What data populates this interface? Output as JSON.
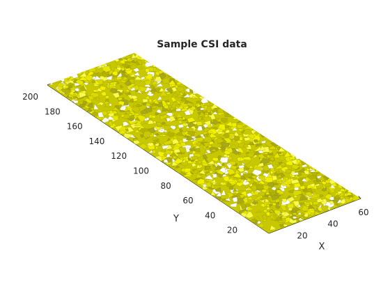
{
  "chart_data": {
    "type": "surface3d",
    "title": "Sample CSI data",
    "xlabel": "X",
    "ylabel": "Y",
    "zlabel": "",
    "xlim": [
      0,
      60
    ],
    "ylim": [
      0,
      200
    ],
    "x_ticks": [
      20,
      40,
      60
    ],
    "y_ticks": [
      20,
      40,
      60,
      80,
      100,
      120,
      140,
      160,
      180,
      200
    ],
    "grid": false,
    "surface_color": "#e0e000",
    "edge_color": "#6b6b00",
    "axis_color": "#262626"
  }
}
